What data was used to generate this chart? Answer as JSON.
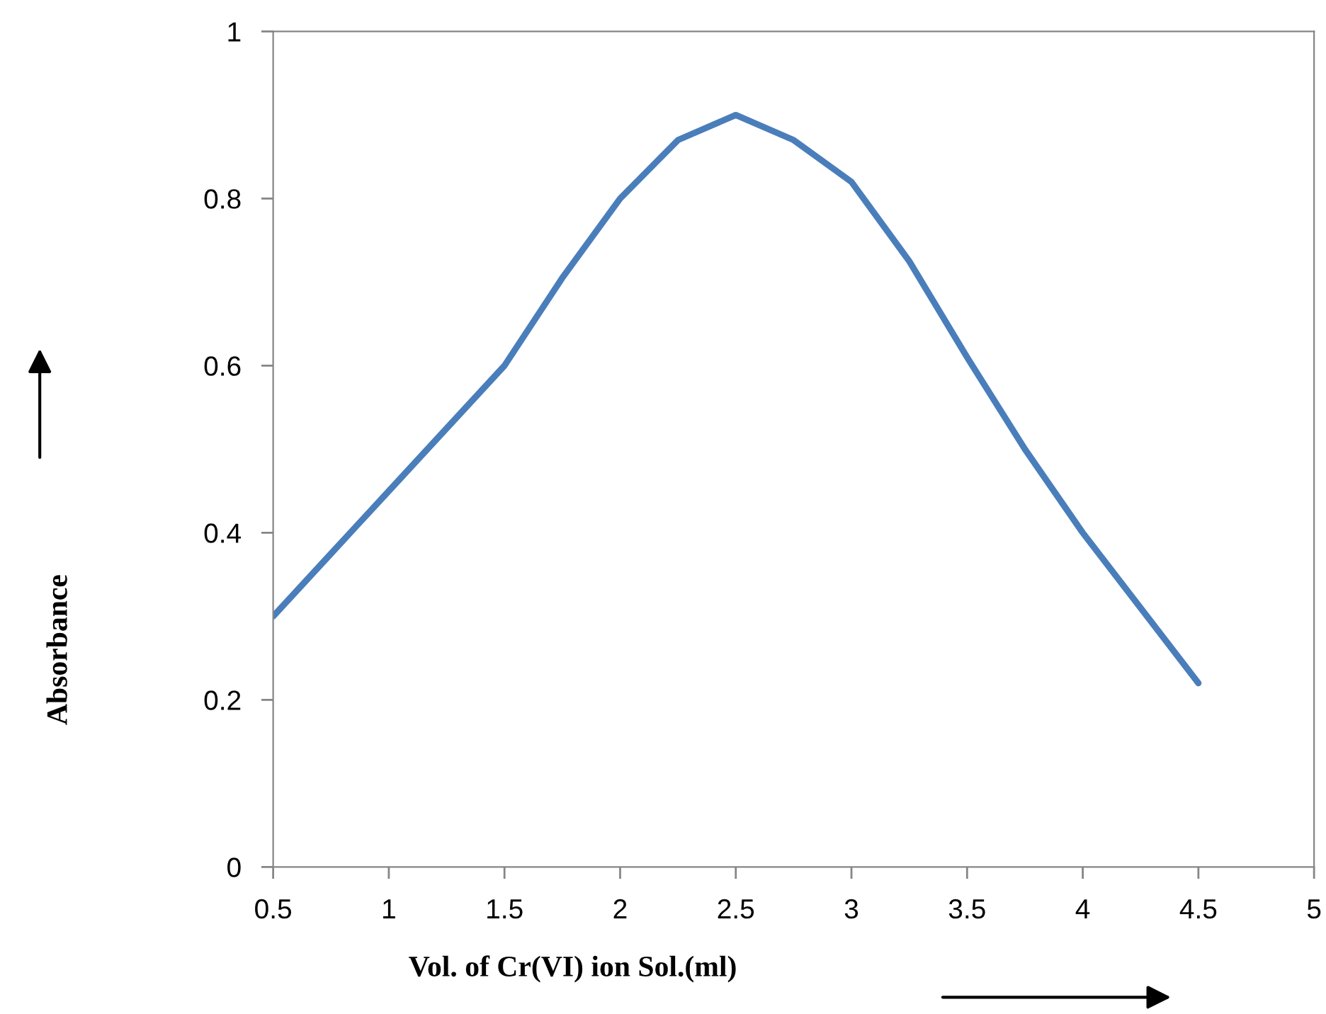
{
  "chart_data": {
    "type": "line",
    "xlabel": "Vol. of Cr(VI) ion Sol.(ml)",
    "ylabel": "Absorbance",
    "x": [
      0.5,
      0.75,
      1,
      1.25,
      1.5,
      1.75,
      2,
      2.25,
      2.5,
      2.75,
      3,
      3.25,
      3.5,
      3.75,
      4,
      4.25,
      4.5
    ],
    "series": [
      {
        "color": "#4a7ebb",
        "values": [
          0.3,
          0.375,
          0.45,
          0.525,
          0.6,
          0.705,
          0.8,
          0.87,
          0.9,
          0.87,
          0.82,
          0.725,
          0.61,
          0.5,
          0.4,
          0.31,
          0.22
        ]
      }
    ],
    "xlim": [
      0.5,
      5
    ],
    "xticks": [
      0.5,
      1,
      1.5,
      2,
      2.5,
      3,
      3.5,
      4,
      4.5,
      5
    ],
    "ylim": [
      0,
      1
    ],
    "yticks": [
      0,
      0.2,
      0.4,
      0.6,
      0.8,
      1
    ],
    "grid": false,
    "legend": false,
    "marker": "none",
    "line_style": "solid"
  }
}
